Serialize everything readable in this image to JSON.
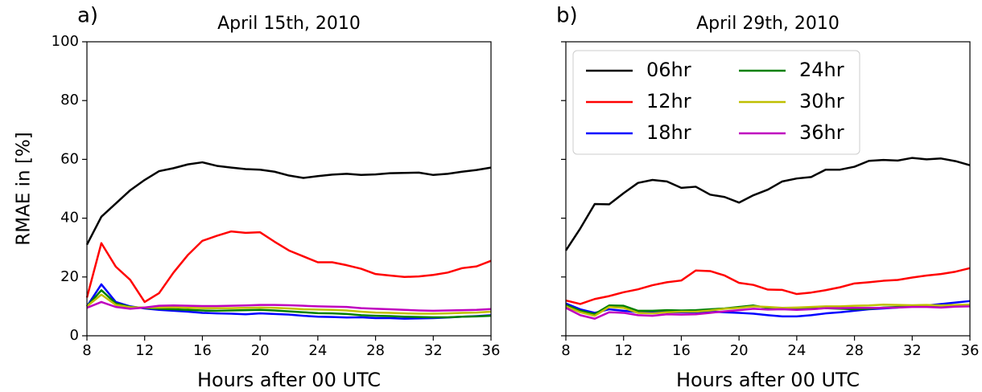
{
  "chart_data": [
    {
      "type": "line",
      "panel_label": "a)",
      "title": "April 15th, 2010",
      "xlabel": "Hours after 00 UTC",
      "ylabel": "RMAE in [%]",
      "x": [
        8,
        9,
        10,
        11,
        12,
        13,
        14,
        15,
        16,
        17,
        18,
        19,
        20,
        21,
        22,
        23,
        24,
        25,
        26,
        27,
        28,
        29,
        30,
        31,
        32,
        33,
        34,
        35,
        36
      ],
      "xlim": [
        8,
        36
      ],
      "xticks": [
        8,
        12,
        16,
        20,
        24,
        28,
        32,
        36
      ],
      "ylim": [
        0,
        100
      ],
      "yticks": [
        0,
        20,
        40,
        60,
        80,
        100
      ],
      "ytick_labels": true,
      "legend": false,
      "series": [
        {
          "color": "#000000",
          "values": [
            31,
            40.5,
            45,
            49.5,
            53,
            56,
            57,
            58.3,
            59,
            57.8,
            57.2,
            56.7,
            56.5,
            55.8,
            54.5,
            53.7,
            54.3,
            54.8,
            55.1,
            54.7,
            54.9,
            55.3,
            55.4,
            55.5,
            54.7,
            55.1,
            55.8,
            56.4,
            57.2
          ]
        },
        {
          "color": "#ff0000",
          "values": [
            13,
            31.5,
            23.5,
            19,
            11.5,
            14.5,
            21.5,
            27.5,
            32.3,
            34,
            35.5,
            35,
            35.2,
            32,
            29,
            27,
            25,
            25,
            24,
            22.8,
            21,
            20.5,
            20,
            20.2,
            20.7,
            21.5,
            23,
            23.6,
            25.5
          ]
        },
        {
          "color": "#0000ff",
          "values": [
            10,
            17.5,
            11.5,
            10,
            9.3,
            8.8,
            8.5,
            8.2,
            7.8,
            7.6,
            7.5,
            7.3,
            7.6,
            7.4,
            7.2,
            6.8,
            6.5,
            6.4,
            6.2,
            6.3,
            6,
            6,
            5.8,
            5.9,
            6,
            6.2,
            6.5,
            6.7,
            7
          ]
        },
        {
          "color": "#008000",
          "values": [
            10,
            15.5,
            11,
            9.8,
            9.5,
            9.2,
            9,
            8.8,
            8.6,
            8.5,
            8.6,
            8.7,
            8.8,
            8.6,
            8.3,
            8,
            7.7,
            7.6,
            7.4,
            7,
            6.8,
            6.7,
            6.5,
            6.4,
            6.3,
            6.3,
            6.5,
            6.6,
            6.8
          ]
        },
        {
          "color": "#bfbf00",
          "values": [
            10,
            14,
            10.5,
            9.7,
            9.6,
            9.6,
            9.7,
            9.5,
            9.4,
            9.4,
            9.4,
            9.5,
            9.6,
            9.5,
            9.3,
            9,
            8.9,
            8.8,
            8.6,
            8.2,
            7.9,
            7.8,
            7.6,
            7.5,
            7.5,
            7.6,
            7.8,
            7.9,
            8.2
          ]
        },
        {
          "color": "#bf00bf",
          "values": [
            9.5,
            11.5,
            9.8,
            9.2,
            9.6,
            10.2,
            10.3,
            10.2,
            10.1,
            10.1,
            10.2,
            10.3,
            10.5,
            10.5,
            10.4,
            10.2,
            10,
            9.9,
            9.8,
            9.4,
            9.2,
            9,
            8.8,
            8.6,
            8.5,
            8.6,
            8.7,
            8.8,
            9.1
          ]
        }
      ]
    },
    {
      "type": "line",
      "panel_label": "b)",
      "title": "April 29th, 2010",
      "xlabel": "Hours after 00 UTC",
      "x": [
        8,
        9,
        10,
        11,
        12,
        13,
        14,
        15,
        16,
        17,
        18,
        19,
        20,
        21,
        22,
        23,
        24,
        25,
        26,
        27,
        28,
        29,
        30,
        31,
        32,
        33,
        34,
        35,
        36
      ],
      "xlim": [
        8,
        36
      ],
      "xticks": [
        8,
        12,
        16,
        20,
        24,
        28,
        32,
        36
      ],
      "ylim": [
        0,
        100
      ],
      "yticks": [
        0,
        20,
        40,
        60,
        80,
        100
      ],
      "ytick_labels": false,
      "legend": true,
      "legend_position": "upper-left",
      "legend_columns": 2,
      "series": [
        {
          "name": "06hr",
          "color": "#000000",
          "values": [
            29,
            36.5,
            44.8,
            44.7,
            48.5,
            52,
            53,
            52.5,
            50.3,
            50.7,
            48,
            47.2,
            45.3,
            47.8,
            49.7,
            52.5,
            53.5,
            54,
            56.5,
            56.5,
            57.5,
            59.5,
            59.8,
            59.6,
            60.5,
            60,
            60.3,
            59.4,
            58
          ]
        },
        {
          "name": "12hr",
          "color": "#ff0000",
          "values": [
            12,
            10.8,
            12.5,
            13.5,
            14.8,
            15.8,
            17.2,
            18.2,
            18.8,
            22.2,
            22,
            20.5,
            18,
            17.3,
            15.7,
            15.6,
            14.2,
            14.7,
            15.5,
            16.5,
            17.8,
            18.2,
            18.7,
            19,
            19.8,
            20.5,
            21,
            21.8,
            23
          ]
        },
        {
          "name": "18hr",
          "color": "#0000ff",
          "values": [
            11,
            9,
            7.8,
            9,
            8.5,
            8,
            8,
            8,
            8,
            8,
            8.2,
            8,
            7.8,
            7.5,
            7,
            6.6,
            6.6,
            7,
            7.6,
            8,
            8.5,
            9,
            9.3,
            9.6,
            10,
            10.3,
            10.8,
            11.3,
            11.8
          ]
        },
        {
          "name": "24hr",
          "color": "#008000",
          "values": [
            10.5,
            8.5,
            7.4,
            10.3,
            10.2,
            8.5,
            8.5,
            8.7,
            8.6,
            8.7,
            9,
            9.3,
            9.8,
            10.3,
            9.5,
            9.2,
            9,
            9.2,
            9.4,
            9.2,
            9,
            9.2,
            9.6,
            9.8,
            10,
            10.2,
            10.2,
            10.3,
            10.5
          ]
        },
        {
          "name": "30hr",
          "color": "#bfbf00",
          "values": [
            10,
            8,
            6.8,
            9.8,
            9.5,
            7.8,
            7.6,
            8,
            8.2,
            8.2,
            8.6,
            9.2,
            9.5,
            10,
            9.8,
            9.5,
            9.6,
            9.8,
            10,
            10,
            10.2,
            10.3,
            10.6,
            10.5,
            10.4,
            10.5,
            10.3,
            10.5,
            10.6
          ]
        },
        {
          "name": "36hr",
          "color": "#bf00bf",
          "values": [
            9.5,
            7,
            5.8,
            8,
            7.8,
            7,
            6.8,
            7.3,
            7.2,
            7.3,
            7.8,
            8.3,
            8.7,
            9.2,
            8.9,
            9,
            8.8,
            9,
            9.4,
            9.4,
            9.5,
            9.5,
            9.5,
            9.6,
            9.8,
            9.8,
            9.6,
            9.9,
            10
          ]
        }
      ]
    }
  ]
}
